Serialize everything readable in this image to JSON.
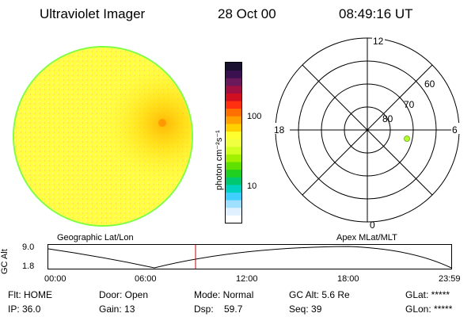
{
  "header": {
    "instrument": "Ultraviolet Imager",
    "date": "28 Oct 00",
    "time": "08:49:16 UT"
  },
  "colorbar": {
    "label": "photon cm⁻²s⁻¹",
    "ticks": [
      "100",
      "10"
    ],
    "colors_top_to_bottom": [
      "#1a1030",
      "#3a1050",
      "#6a1a5a",
      "#a01040",
      "#d01020",
      "#ff3010",
      "#ff7000",
      "#ffa000",
      "#ffd000",
      "#ffff30",
      "#f0ff40",
      "#d0ff20",
      "#a0f000",
      "#60e000",
      "#20d020",
      "#00c870",
      "#00d0c0",
      "#40d0ff",
      "#a0e0ff",
      "#e0f0ff",
      "#ffffff"
    ]
  },
  "polar": {
    "mlt_labels": [
      "12",
      "18",
      "6",
      "0"
    ],
    "lat_labels": [
      "60",
      "70",
      "80"
    ],
    "point_color": "#b0ff30"
  },
  "timeline": {
    "left_title": "Geographic Lat/Lon",
    "right_title": "Apex MLat/MLT",
    "y_axis_label": "GC Alt",
    "y_ticks": [
      "9.0",
      "1.8"
    ],
    "x_ticks": [
      "00:00",
      "06:00",
      "12:00",
      "18:00",
      "23:59"
    ],
    "current_time_marker_color": "#c00000"
  },
  "info": {
    "row1": [
      "Flt: HOME",
      "Door: Open",
      "Mode: Normal",
      "GC Alt: 5.6 Re",
      "GLat: *****"
    ],
    "row2": [
      "IP: 36.0",
      "Gain: 13",
      "Dsp:    59.7",
      "Seq: 39",
      "GLon: *****"
    ]
  }
}
